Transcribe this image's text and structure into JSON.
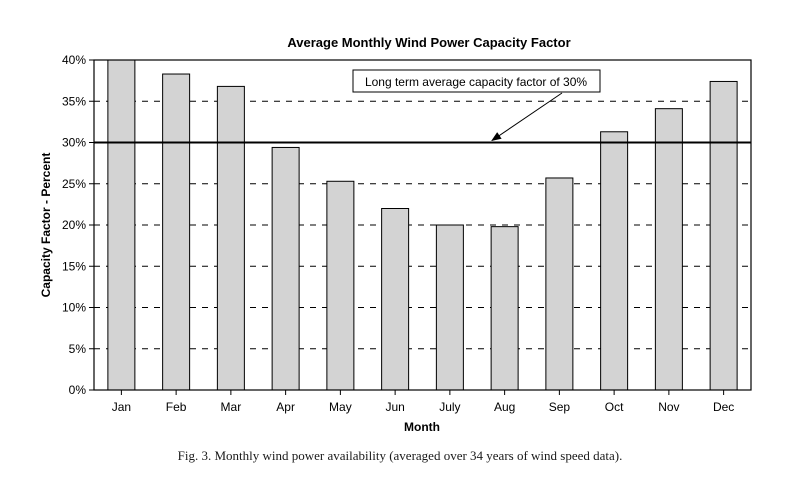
{
  "chart_data": {
    "type": "bar",
    "title": "Average Monthly Wind Power Capacity Factor",
    "xlabel": "Month",
    "ylabel": "Capacity Factor - Percent",
    "categories": [
      "Jan",
      "Feb",
      "Mar",
      "Apr",
      "May",
      "Jun",
      "July",
      "Aug",
      "Sep",
      "Oct",
      "Nov",
      "Dec"
    ],
    "values": [
      40.0,
      38.3,
      36.8,
      29.4,
      25.3,
      22.0,
      20.0,
      19.8,
      25.7,
      31.3,
      34.1,
      37.4
    ],
    "ylim": [
      0,
      40
    ],
    "yticks": [
      "0%",
      "5%",
      "10%",
      "15%",
      "20%",
      "25%",
      "30%",
      "35%",
      "40%"
    ],
    "ytick_values": [
      0,
      5,
      10,
      15,
      20,
      25,
      30,
      35,
      40
    ],
    "grid": "dashed horizontal",
    "reference_line": {
      "value": 30,
      "label": "Long term average capacity factor of 30%"
    },
    "bar_color": "#d3d3d3",
    "bar_stroke": "#000000"
  },
  "caption": "Fig. 3.  Monthly wind power availability (averaged over 34 years of wind speed data)."
}
